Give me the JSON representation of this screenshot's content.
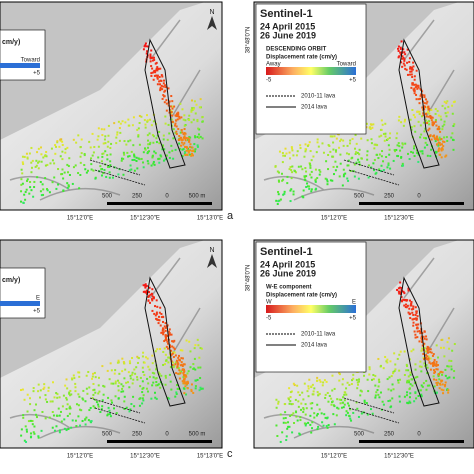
{
  "panels": [
    {
      "label": "a",
      "north": "N",
      "legend": {
        "unit": "cm/y)",
        "end_label": "Toward",
        "max": "+5"
      },
      "x_ticks": [
        "15°12'0\"E",
        "15°12'30\"E",
        "15°13'0\"E"
      ],
      "scale": [
        "500",
        "250",
        "0",
        "500 m"
      ]
    },
    {
      "legend": {
        "title": "Sentinel-1",
        "dates": [
          "24 April 2015",
          "26 June 2019"
        ],
        "mode": "DESCENDING ORBIT",
        "unit": "Displacement rate (cm/y)",
        "end_labels": [
          "Away",
          "Toward"
        ],
        "range": [
          "-5",
          "+5"
        ],
        "lines": [
          "2010-11 lava",
          "2014 lava"
        ]
      },
      "y_tick": "38°48'0\"N",
      "x_ticks": [
        "15°12'0\"E",
        "15°12'30\"E"
      ],
      "scale": [
        "500",
        "250",
        "0"
      ]
    },
    {
      "label": "c",
      "north": "N",
      "legend": {
        "unit": "cm/y)",
        "end_label": "E",
        "max": "+5"
      },
      "x_ticks": [
        "15°12'0\"E",
        "15°12'30\"E",
        "15°13'0\"E"
      ],
      "scale": [
        "500",
        "250",
        "0",
        "500 m"
      ]
    },
    {
      "legend": {
        "title": "Sentinel-1",
        "dates": [
          "24 April 2015",
          "26 June 2019"
        ],
        "mode": "W-E component",
        "unit": "Displacement rate (cm/y)",
        "end_labels": [
          "W",
          "E"
        ],
        "range": [
          "-5",
          "+5"
        ],
        "lines": [
          "2010-11 lava",
          "2014 lava"
        ]
      },
      "y_tick": "38°48'0\"N",
      "x_ticks": [
        "15°12'0\"E",
        "15°12'30\"E"
      ],
      "scale": [
        "500",
        "250",
        "0"
      ]
    }
  ]
}
